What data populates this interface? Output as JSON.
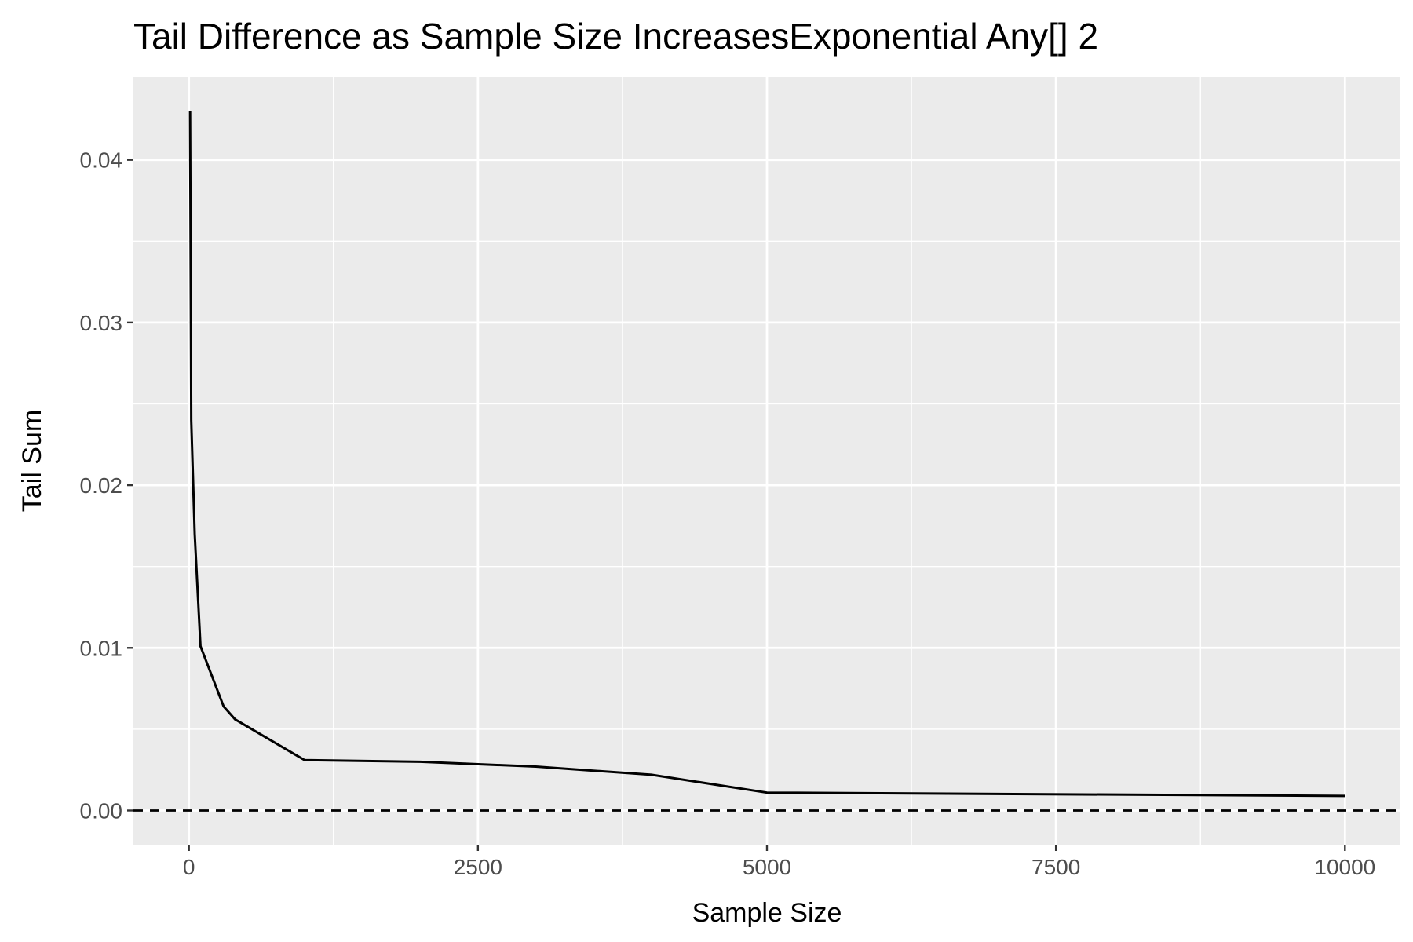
{
  "chart_data": {
    "type": "line",
    "title": "Tail Difference as Sample Size IncreasesExponential Any[] 2",
    "xlabel": "Sample Size",
    "ylabel": "Tail Sum",
    "xlim": [
      -480,
      10480
    ],
    "ylim": [
      -0.0021,
      0.0451
    ],
    "x_ticks": [
      0,
      2500,
      5000,
      7500,
      10000
    ],
    "x_tick_labels": [
      "0",
      "2500",
      "5000",
      "7500",
      "10000"
    ],
    "y_ticks": [
      0.0,
      0.01,
      0.02,
      0.03,
      0.04
    ],
    "y_tick_labels": [
      "0.00",
      "0.01",
      "0.02",
      "0.03",
      "0.04"
    ],
    "grid": true,
    "panel_background": "#ebebeb",
    "grid_color": "#ffffff",
    "line_color": "#000000",
    "reference_line": {
      "y": 0,
      "style": "dashed",
      "color": "#000000"
    },
    "series": [
      {
        "x": [
          10,
          20,
          50,
          100,
          300,
          400,
          1000,
          2000,
          3000,
          4000,
          5000,
          10000
        ],
        "y": [
          0.043,
          0.024,
          0.017,
          0.0101,
          0.0064,
          0.0056,
          0.0031,
          0.003,
          0.0027,
          0.0022,
          0.0011,
          0.0009
        ]
      }
    ]
  }
}
